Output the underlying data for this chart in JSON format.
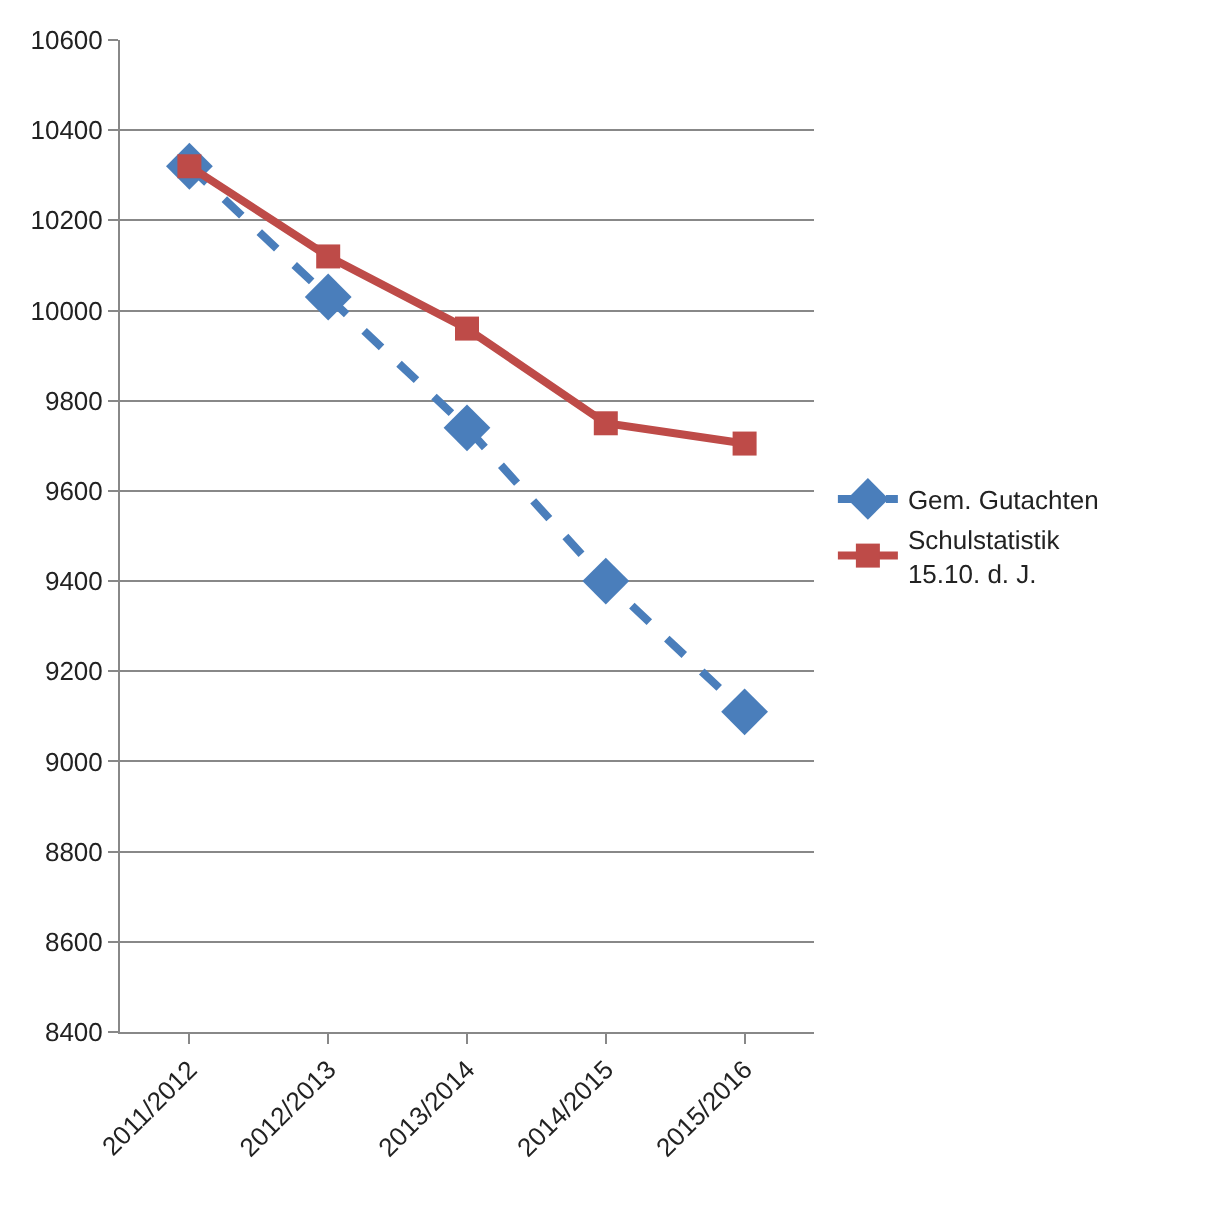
{
  "chart_data": {
    "type": "line",
    "categories": [
      "2011/2012",
      "2012/2013",
      "2013/2014",
      "2014/2015",
      "2015/2016"
    ],
    "series": [
      {
        "name": "Gem. Gutachten",
        "color": "#4a7ebb",
        "values": [
          10320,
          10030,
          9740,
          9400,
          9110
        ],
        "marker": "diamond",
        "line_style": "dashed"
      },
      {
        "name": "Schulstatistik 15.10. d. J.",
        "color": "#be4b48",
        "values": [
          10320,
          10120,
          9960,
          9750,
          9705
        ],
        "marker": "square",
        "line_style": "solid"
      }
    ],
    "ylim": [
      8400,
      10600
    ],
    "yticks": [
      8400,
      8600,
      8800,
      9000,
      9200,
      9400,
      9600,
      9800,
      10000,
      10200,
      10400,
      10600
    ],
    "grid": "y",
    "legend": "right"
  }
}
